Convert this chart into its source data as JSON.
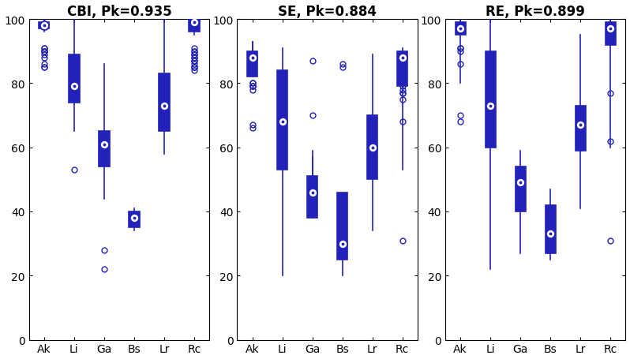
{
  "titles": [
    "CBI, Pk=0.935",
    "SE, Pk=0.884",
    "RE, Pk=0.899"
  ],
  "categories": [
    "Ak",
    "Li",
    "Ga",
    "Bs",
    "Lr",
    "Rc"
  ],
  "blue": "#2222BB",
  "ylim": [
    0,
    100
  ],
  "yticks": [
    0,
    20,
    40,
    60,
    80,
    100
  ],
  "figsize": [
    7.98,
    4.56
  ],
  "dpi": 100,
  "panels": [
    {
      "boxes": [
        {
          "med": 98,
          "q1": 97,
          "q3": 99,
          "whislo": 96,
          "whishi": 100,
          "fliers": [
            91,
            91,
            90,
            90,
            90,
            89,
            88,
            86,
            85,
            85
          ]
        },
        {
          "med": 79,
          "q1": 74,
          "q3": 89,
          "whislo": 65,
          "whishi": 100,
          "fliers": [
            53
          ]
        },
        {
          "med": 61,
          "q1": 54,
          "q3": 65,
          "whislo": 44,
          "whishi": 86,
          "fliers": [
            28,
            22
          ]
        },
        {
          "med": 38,
          "q1": 35,
          "q3": 40,
          "whislo": 34,
          "whishi": 41,
          "fliers": []
        },
        {
          "med": 73,
          "q1": 65,
          "q3": 83,
          "whislo": 58,
          "whishi": 100,
          "fliers": []
        },
        {
          "med": 99,
          "q1": 96,
          "q3": 100,
          "whislo": 95,
          "whishi": 100,
          "fliers": [
            91,
            90,
            90,
            89,
            89,
            88,
            88,
            87,
            87,
            86,
            85,
            85,
            85,
            84
          ]
        }
      ]
    },
    {
      "boxes": [
        {
          "med": 88,
          "q1": 82,
          "q3": 90,
          "whislo": 93,
          "whishi": 93,
          "fliers": [
            80,
            80,
            79,
            79,
            79,
            78,
            67,
            66
          ]
        },
        {
          "med": 68,
          "q1": 53,
          "q3": 84,
          "whislo": 20,
          "whishi": 91,
          "fliers": []
        },
        {
          "med": 46,
          "q1": 38,
          "q3": 51,
          "whislo": 57,
          "whishi": 59,
          "fliers": [
            70,
            87
          ]
        },
        {
          "med": 30,
          "q1": 25,
          "q3": 46,
          "whislo": 20,
          "whishi": 46,
          "fliers": [
            85,
            86,
            31
          ]
        },
        {
          "med": 60,
          "q1": 50,
          "q3": 70,
          "whislo": 34,
          "whishi": 89,
          "fliers": []
        },
        {
          "med": 88,
          "q1": 79,
          "q3": 90,
          "whislo": 53,
          "whishi": 91,
          "fliers": [
            80,
            79,
            78,
            77,
            77,
            75,
            68,
            31
          ]
        }
      ]
    },
    {
      "boxes": [
        {
          "med": 97,
          "q1": 95,
          "q3": 99,
          "whislo": 80,
          "whishi": 100,
          "fliers": [
            91,
            91,
            90,
            86,
            70,
            68
          ]
        },
        {
          "med": 73,
          "q1": 60,
          "q3": 90,
          "whislo": 22,
          "whishi": 100,
          "fliers": []
        },
        {
          "med": 49,
          "q1": 40,
          "q3": 54,
          "whislo": 27,
          "whishi": 59,
          "fliers": []
        },
        {
          "med": 33,
          "q1": 27,
          "q3": 42,
          "whislo": 25,
          "whishi": 47,
          "fliers": []
        },
        {
          "med": 67,
          "q1": 59,
          "q3": 73,
          "whislo": 41,
          "whishi": 95,
          "fliers": [
            61,
            60
          ]
        },
        {
          "med": 97,
          "q1": 92,
          "q3": 99,
          "whislo": 60,
          "whishi": 100,
          "fliers": [
            77,
            62,
            31
          ]
        }
      ]
    }
  ]
}
